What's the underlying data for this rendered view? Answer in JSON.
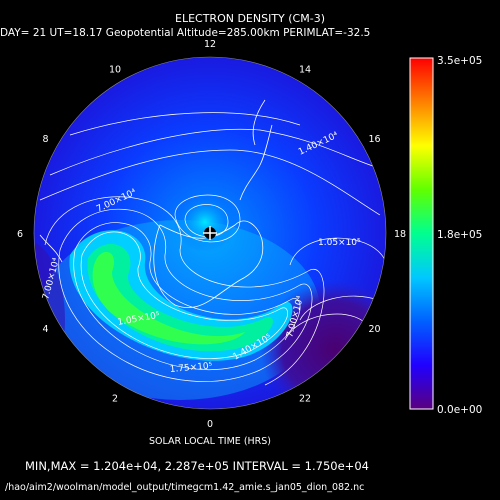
{
  "chart_data": {
    "type": "heatmap",
    "projection": "polar",
    "title": "ELECTRON DENSITY (CM-3)",
    "subtitle": "DAY= 21 UT=18.17 Geopotential Altitude=285.00km PERIMLAT=-32.5",
    "xlabel": "SOLAR LOCAL TIME (HRS)",
    "local_time_labels": [
      "0",
      "2",
      "4",
      "6",
      "8",
      "10",
      "12",
      "14",
      "16",
      "18",
      "20",
      "22"
    ],
    "colorbar": {
      "tick_labels": [
        "3.5e+05",
        "1.8e+05",
        "0.0e+00"
      ],
      "range": [
        0,
        350000
      ],
      "colors": [
        "#5a0080",
        "#2000ff",
        "#0060ff",
        "#00c8ff",
        "#00ff90",
        "#60ff00",
        "#ffff00",
        "#ff8000",
        "#ff0000"
      ]
    },
    "contour_labels": [
      "1.40×10⁴",
      "7.00×10⁴",
      "1.05×10⁵",
      "7.00×10⁴",
      "1.05×10⁵",
      "7.00×10⁴",
      "1.75×10⁵",
      "1.40×10⁵"
    ],
    "min": 12040,
    "max": 228700,
    "interval": 17500
  },
  "footer": {
    "stats": "MIN,MAX =  1.204e+04, 2.287e+05 INTERVAL =  1.750e+04",
    "path": "/hao/aim2/woolman/model_output/timegcm1.42_amie.s_jan05_dion_082.nc"
  }
}
